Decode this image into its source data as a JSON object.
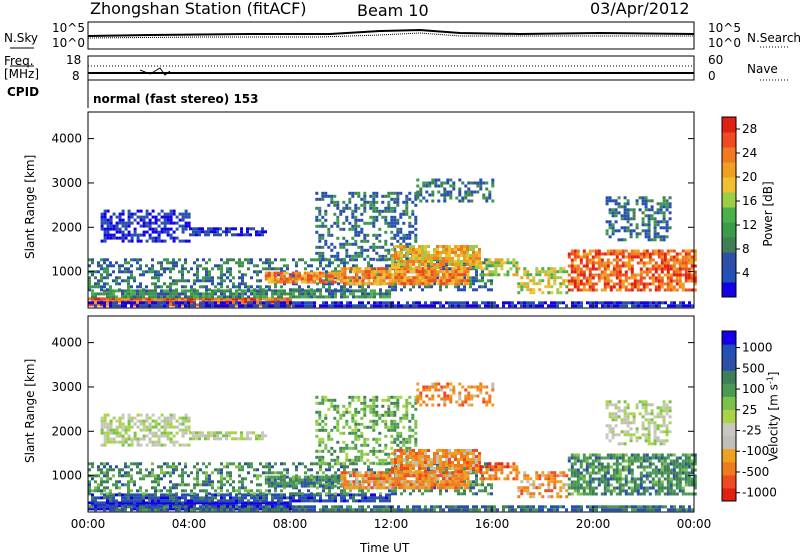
{
  "header": {
    "station": "Zhongshan Station (fitACF)",
    "beam": "Beam 10",
    "date": "03/Apr/2012"
  },
  "noise_panel": {
    "left_label": "N.Sky",
    "right_label": "N.Search",
    "left_ticks": [
      "10^5",
      "10^0"
    ],
    "right_ticks": [
      "10^5",
      "10^0"
    ]
  },
  "freq_panel": {
    "left_label_1": "Freq.",
    "left_label_2": "[MHz]",
    "left_ticks": [
      "18",
      "8"
    ],
    "right_label": "Nave",
    "right_ticks": [
      "60",
      "0"
    ]
  },
  "cpid": {
    "label": "CPID",
    "program": "normal (fast stereo) 153"
  },
  "colors": {
    "power": [
      "#1400e6",
      "#2350b6",
      "#2d4fa5",
      "#3f7f57",
      "#3c9b4a",
      "#4cb04a",
      "#9bce46",
      "#f0c030",
      "#f0a020",
      "#f07a20",
      "#f04a20",
      "#e02010"
    ],
    "velocity": [
      "#1400e6",
      "#2350b6",
      "#2d4fa5",
      "#3f7f57",
      "#4a9a55",
      "#7cc24a",
      "#a9d44a",
      "#c8c8c0",
      "#c0c0b8",
      "#f0a020",
      "#f07a20",
      "#f04a20",
      "#e02010"
    ]
  },
  "chart_data": [
    {
      "type": "heatmap",
      "panel": "power",
      "ylabel": "Slant Range [km]",
      "yticks": [
        "1000",
        "2000",
        "3000",
        "4000"
      ],
      "ylim": [
        180,
        4600
      ],
      "colorbar_label": "Power [dB]",
      "colorbar_ticks": [
        "4",
        "8",
        "12",
        "16",
        "20",
        "24",
        "28"
      ],
      "colorbar_range": [
        0,
        30
      ]
    },
    {
      "type": "heatmap",
      "panel": "velocity",
      "ylabel": "Slant Range [km]",
      "yticks": [
        "1000",
        "2000",
        "3000",
        "4000"
      ],
      "ylim": [
        180,
        4600
      ],
      "colorbar_label": "Velocity [m s",
      "colorbar_label_sup": "-1",
      "colorbar_label_end": "]",
      "colorbar_ticks": [
        "1000",
        "500",
        "100",
        "25",
        "-25",
        "-100",
        "-500",
        "-1000"
      ],
      "xlabel": "Time UT",
      "xticks": [
        "00:00",
        "04:00",
        "08:00",
        "12:00",
        "16:00",
        "20:00",
        "00:00"
      ],
      "xlim": [
        0,
        24
      ]
    }
  ]
}
